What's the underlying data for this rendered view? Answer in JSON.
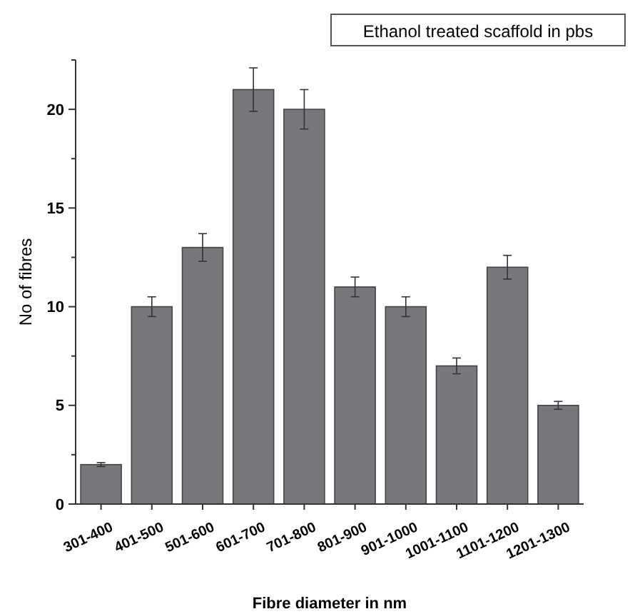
{
  "chart_data": {
    "type": "bar",
    "title": "Ethanol treated scaffold in pbs",
    "xlabel": "Fibre diameter in nm",
    "ylabel": "No of fibres",
    "categories": [
      "301-400",
      "401-500",
      "501-600",
      "601-700",
      "701-800",
      "801-900",
      "901-1000",
      "1001-1100",
      "1101-1200",
      "1201-1300"
    ],
    "values": [
      2,
      10,
      13,
      21,
      20,
      11,
      10,
      7,
      12,
      5
    ],
    "errors": [
      0.1,
      0.5,
      0.7,
      1.1,
      1,
      0.5,
      0.5,
      0.4,
      0.6,
      0.2
    ],
    "color": "#77787c",
    "ylim": [
      0,
      22.5
    ],
    "yticks": [
      0,
      {
        "value": 2.5,
        "label": null
      },
      5,
      {
        "value": 7.5,
        "label": null
      },
      10,
      {
        "value": 12.5,
        "label": null
      },
      15,
      {
        "value": 17.5,
        "label": null
      },
      20,
      {
        "value": 22.5,
        "label": null
      }
    ],
    "grid": false
  }
}
